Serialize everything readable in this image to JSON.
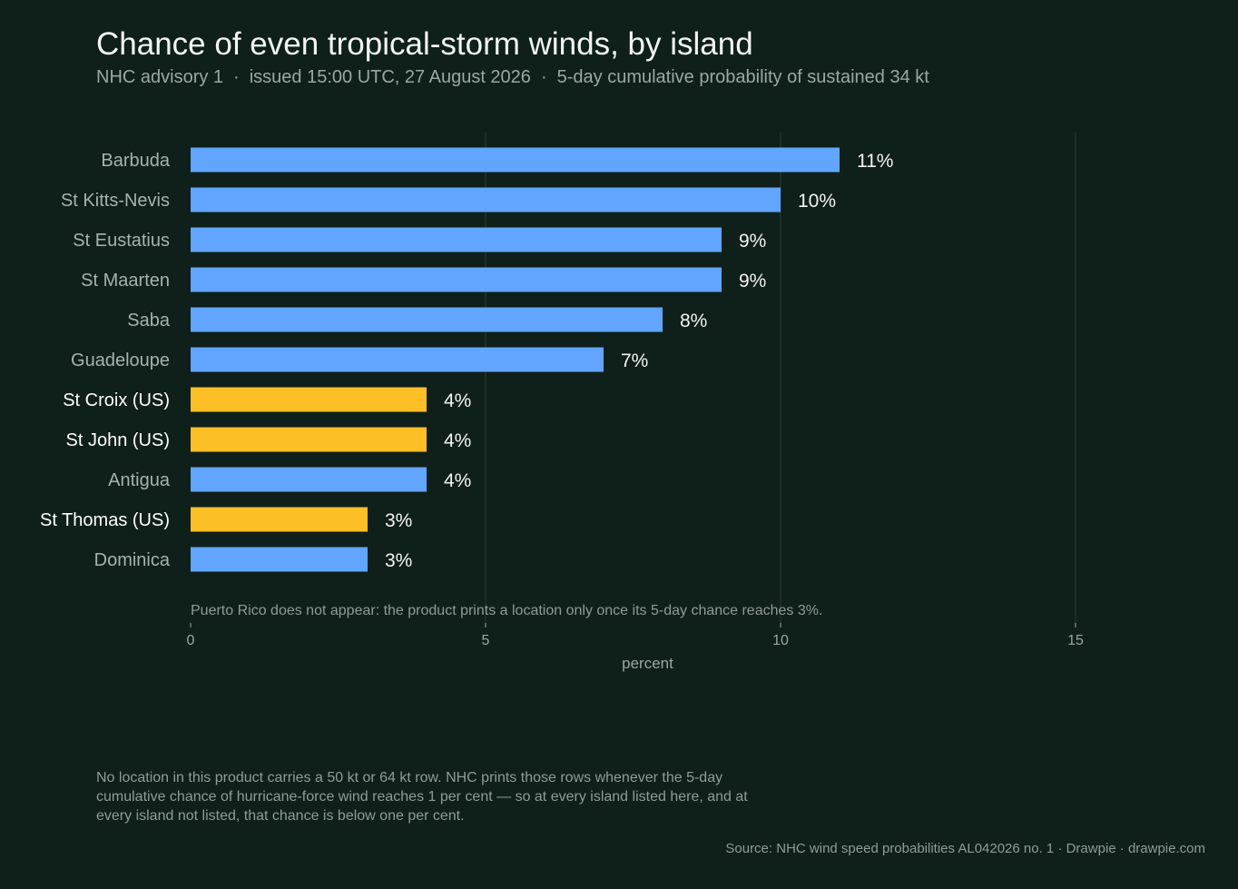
{
  "header": {
    "title": "Chance of even tropical-storm winds, by island",
    "subtitle_parts": [
      "NHC advisory 1",
      "issued 15:00 UTC, 27 August 2026",
      "5-day cumulative probability of sustained 34 kt"
    ],
    "separator": "·"
  },
  "chart_data": {
    "type": "bar",
    "orientation": "horizontal",
    "categories": [
      "Barbuda",
      "St Kitts-Nevis",
      "St Eustatius",
      "St Maarten",
      "Saba",
      "Guadeloupe",
      "St Croix  (US)",
      "St John  (US)",
      "Antigua",
      "St Thomas  (US)",
      "Dominica"
    ],
    "values": [
      11,
      10,
      9,
      9,
      8,
      7,
      4,
      4,
      4,
      3,
      3
    ],
    "value_labels": [
      "11%",
      "10%",
      "9%",
      "9%",
      "8%",
      "7%",
      "4%",
      "4%",
      "4%",
      "3%",
      "3%"
    ],
    "highlight": [
      false,
      false,
      false,
      false,
      false,
      false,
      true,
      true,
      false,
      true,
      false
    ],
    "colors": {
      "default": "#62a5ff",
      "highlight": "#fcbf26",
      "label_default": "#a7b3ad",
      "label_highlight": "#ffffff",
      "value_label": "#f2f5f2",
      "grid": "#27372f",
      "tick": "#9aa8a2",
      "note": "#8f9c97"
    },
    "xlim": [
      0,
      15
    ],
    "x_ticks": [
      0,
      5,
      10,
      15
    ],
    "xlabel": "percent",
    "ylabel": "",
    "grid": true,
    "annotation": "Puerto Rico does not appear: the product prints a location only once its 5-day chance reaches 3%."
  },
  "footer": {
    "note": "No location in this product carries a 50 kt or 64 kt row. NHC prints those rows whenever the 5-day cumulative chance of hurricane-force wind reaches 1 per cent — so at every island listed here, and at every island not listed, that chance is below one per cent.",
    "source": "Source: NHC wind speed probabilities AL042026 no. 1  ·  Drawpie · drawpie.com"
  }
}
